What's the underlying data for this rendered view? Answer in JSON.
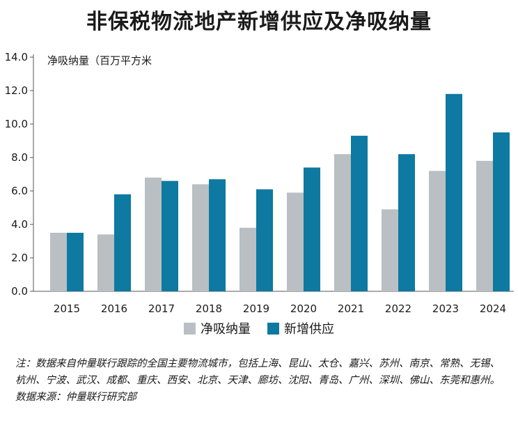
{
  "title": "非保税物流地产新增供应及净吸纳量",
  "chart_data": {
    "type": "bar",
    "title": "非保税物流地产新增供应及净吸纳量",
    "ylabel": "净吸纳量（百万平方米",
    "xlabel": "",
    "categories": [
      "2015",
      "2016",
      "2017",
      "2018",
      "2019",
      "2020",
      "2021",
      "2022",
      "2023",
      "2024"
    ],
    "series": [
      {
        "name": "净吸纳量",
        "color": "#b9bfc2",
        "values": [
          3.5,
          3.4,
          6.8,
          6.4,
          3.8,
          5.9,
          8.2,
          4.9,
          7.2,
          7.8
        ]
      },
      {
        "name": "新增供应",
        "color": "#0e79a1",
        "values": [
          3.5,
          5.8,
          6.6,
          6.7,
          6.1,
          7.4,
          9.3,
          8.2,
          11.8,
          9.5
        ]
      }
    ],
    "ylim": [
      0,
      14
    ],
    "yticks": [
      "0.0",
      "2.0",
      "4.0",
      "6.0",
      "8.0",
      "10.0",
      "12.0",
      "14.0"
    ],
    "grid": false,
    "legend": "bottom-center"
  },
  "notes": {
    "note": "注：数据来自仲量联行跟踪的全国主要物流城市，包括上海、昆山、太仓、嘉兴、苏州、南京、常熟、无锡、杭州、宁波、武汉、成都、重庆、西安、北京、天津、廊坊、沈阳、青岛、广州、深圳、佛山、东莞和惠州。",
    "source": "数据来源：仲量联行研究部"
  }
}
